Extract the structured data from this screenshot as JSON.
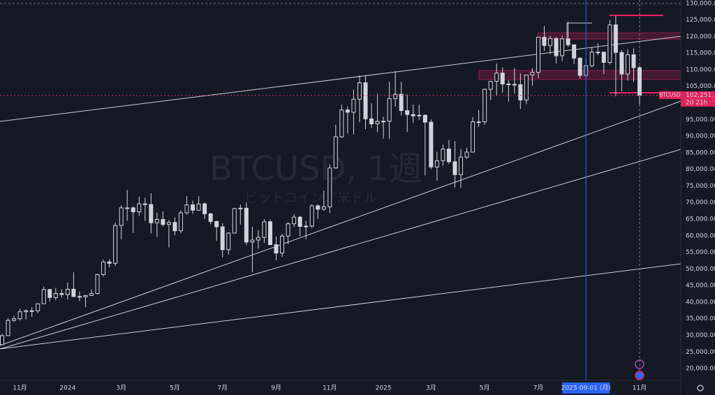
{
  "chart_data": {
    "type": "candlestick",
    "title": "BTCUSD, 1週",
    "subtitle": "ビットコイン／米ドル",
    "symbol": "BTCUSD",
    "countdown": "2d 21h",
    "color": "#d1d4dc",
    "categories": [
      null,
      null,
      null,
      "11月",
      null,
      null,
      null,
      null,
      null,
      null,
      null,
      "2024",
      null,
      null,
      null,
      null,
      null,
      null,
      null,
      null,
      "3月",
      null,
      null,
      null,
      null,
      null,
      null,
      null,
      null,
      "5月",
      null,
      null,
      null,
      null,
      null,
      null,
      null,
      "7月",
      null,
      null,
      null,
      null,
      null,
      null,
      null,
      null,
      "9月",
      null,
      null,
      null,
      null,
      null,
      null,
      null,
      null,
      "11月",
      null,
      null,
      null,
      null,
      null,
      null,
      null,
      null,
      "2025",
      null,
      null,
      null,
      null,
      null,
      null,
      null,
      "3月",
      null,
      null,
      null,
      null,
      null,
      null,
      null,
      null,
      "5月",
      null,
      null,
      null,
      null,
      null,
      null,
      null,
      null,
      "7月",
      null,
      null,
      null,
      null,
      null,
      null,
      null,
      "2025-09-01 (月)",
      null,
      null,
      null,
      null,
      null,
      null,
      null,
      null,
      "11月"
    ],
    "open": [
      27200,
      29900,
      34500,
      35000,
      37100,
      37400,
      37400,
      39500,
      43800,
      41400,
      42600,
      42300,
      43900,
      41700,
      41600,
      42000,
      42600,
      48300,
      52100,
      51700,
      63100,
      68400,
      68400,
      67200,
      69600,
      69400,
      63900,
      64900,
      63400,
      64000,
      61500,
      66900,
      69300,
      67700,
      69600,
      66600,
      64300,
      62700,
      55800,
      60800,
      68200,
      68300,
      58100,
      58700,
      59500,
      64200,
      57300,
      54800,
      59900,
      63600,
      65600,
      62800,
      62900,
      69000,
      68000,
      68700,
      80400,
      89800,
      97900,
      97200,
      101100,
      106100,
      95200,
      93700,
      94500,
      94500,
      101300,
      102600,
      97700,
      96500,
      96100,
      96300,
      94200,
      80700,
      82600,
      86100,
      82300,
      78400,
      83700,
      85200,
      94300,
      94300,
      104100,
      106500,
      109000,
      105700,
      105600,
      105500,
      100900,
      108400,
      109200,
      119800,
      117300,
      119400,
      114200,
      119300,
      117500,
      113500,
      108300,
      111200,
      115300,
      115300,
      112200,
      123500,
      115200,
      108700,
      114500,
      110600
    ],
    "high": [
      30400,
      35200,
      35900,
      38000,
      37900,
      38400,
      39500,
      44700,
      44000,
      44300,
      43900,
      45900,
      49000,
      43200,
      42200,
      43800,
      48600,
      52800,
      52900,
      64000,
      69200,
      73800,
      68900,
      71800,
      71400,
      72800,
      66900,
      67300,
      64700,
      65500,
      67700,
      71900,
      70600,
      71900,
      70100,
      66900,
      64500,
      63800,
      61000,
      68400,
      69400,
      70000,
      62700,
      61700,
      65000,
      64900,
      59800,
      60600,
      64100,
      66500,
      66000,
      64500,
      69500,
      69500,
      73600,
      81500,
      93400,
      99500,
      98900,
      104000,
      108300,
      108300,
      99900,
      102700,
      95800,
      106400,
      109600,
      106400,
      102500,
      99500,
      99500,
      96500,
      95000,
      85300,
      87400,
      88800,
      88500,
      86100,
      86500,
      95700,
      97900,
      104300,
      106600,
      111900,
      110700,
      106800,
      110500,
      108900,
      108500,
      110500,
      119900,
      123200,
      120200,
      119800,
      120300,
      124500,
      117600,
      113700,
      113400,
      116800,
      117900,
      115400,
      125000,
      126200,
      115900,
      116100,
      116400,
      111200
    ],
    "low": [
      27100,
      29800,
      34100,
      34500,
      34800,
      35600,
      36700,
      39500,
      40200,
      40500,
      41300,
      40800,
      41500,
      40300,
      38500,
      41900,
      42300,
      47700,
      50500,
      50900,
      59000,
      64500,
      60800,
      66000,
      64500,
      60700,
      59600,
      62800,
      56500,
      60200,
      60700,
      66300,
      66600,
      67500,
      65100,
      63400,
      58400,
      53500,
      54300,
      60800,
      63400,
      57200,
      49000,
      56100,
      57800,
      57200,
      52600,
      53600,
      57500,
      62700,
      59800,
      58900,
      62400,
      65100,
      67500,
      66800,
      80200,
      89400,
      90800,
      90500,
      94200,
      92100,
      92500,
      91200,
      89300,
      89200,
      98900,
      96200,
      91200,
      94100,
      94800,
      78200,
      80100,
      76600,
      81100,
      81600,
      74500,
      74400,
      83100,
      85100,
      92800,
      93400,
      100900,
      102100,
      103100,
      100400,
      102800,
      98200,
      99600,
      105200,
      107500,
      115700,
      114700,
      111900,
      112600,
      116900,
      111700,
      107300,
      107300,
      110700,
      114400,
      108700,
      111600,
      102000,
      103500,
      106700,
      106300,
      99500
    ],
    "close": [
      29900,
      34500,
      35000,
      37100,
      37400,
      37400,
      39500,
      43800,
      41400,
      42600,
      42300,
      43900,
      41700,
      41600,
      42000,
      42600,
      48300,
      52100,
      51700,
      63100,
      68400,
      68400,
      67200,
      69600,
      69400,
      63900,
      64900,
      63400,
      64000,
      61500,
      66900,
      69300,
      67700,
      69600,
      66600,
      64300,
      62700,
      55800,
      60800,
      68200,
      68300,
      58100,
      58700,
      59500,
      64200,
      57300,
      54800,
      59900,
      63600,
      65600,
      62800,
      62900,
      69000,
      68000,
      68700,
      80400,
      89800,
      97900,
      97200,
      101100,
      106100,
      95200,
      93700,
      94500,
      94500,
      101300,
      102600,
      97700,
      96500,
      96100,
      96300,
      94200,
      80700,
      82600,
      86100,
      82300,
      78400,
      83700,
      85200,
      94300,
      94300,
      104100,
      106500,
      109000,
      105700,
      105600,
      105500,
      100900,
      108400,
      109200,
      119800,
      117300,
      119400,
      114200,
      119300,
      117500,
      113500,
      108300,
      111200,
      115300,
      115300,
      112200,
      123500,
      115200,
      108700,
      114500,
      110600,
      102251.71
    ],
    "last_price": {
      "value": 102251.71,
      "label": "102,251.71"
    },
    "ylim": [
      17500,
      131000
    ],
    "yticks": [
      {
        "value": 20000,
        "label": "20,000.00"
      },
      {
        "value": 25000,
        "label": "25,000.00"
      },
      {
        "value": 30000,
        "label": "30,000.00"
      },
      {
        "value": 35000,
        "label": "35,000.00"
      },
      {
        "value": 40000,
        "label": "40,000.00"
      },
      {
        "value": 45000,
        "label": "45,000.00"
      },
      {
        "value": 50000,
        "label": "50,000.00"
      },
      {
        "value": 55000,
        "label": "55,000.00"
      },
      {
        "value": 60000,
        "label": "60,000.00"
      },
      {
        "value": 65000,
        "label": "65,000.00"
      },
      {
        "value": 70000,
        "label": "70,000.00"
      },
      {
        "value": 75000,
        "label": "75,000.00"
      },
      {
        "value": 80000,
        "label": "80,000.00"
      },
      {
        "value": 85000,
        "label": "85,000.00"
      },
      {
        "value": 90000,
        "label": "90,000.00"
      },
      {
        "value": 95000,
        "label": "95,000.00"
      },
      {
        "value": 100000,
        "label": "100,000.00"
      },
      {
        "value": 105000,
        "label": "105,000.00"
      },
      {
        "value": 110000,
        "label": "110,000.00"
      },
      {
        "value": 115000,
        "label": "115,000.00"
      },
      {
        "value": 120000,
        "label": "120,000.00"
      },
      {
        "value": 125000,
        "label": "125,000.00"
      },
      {
        "value": 130000,
        "label": "130,000.00"
      }
    ]
  }
}
